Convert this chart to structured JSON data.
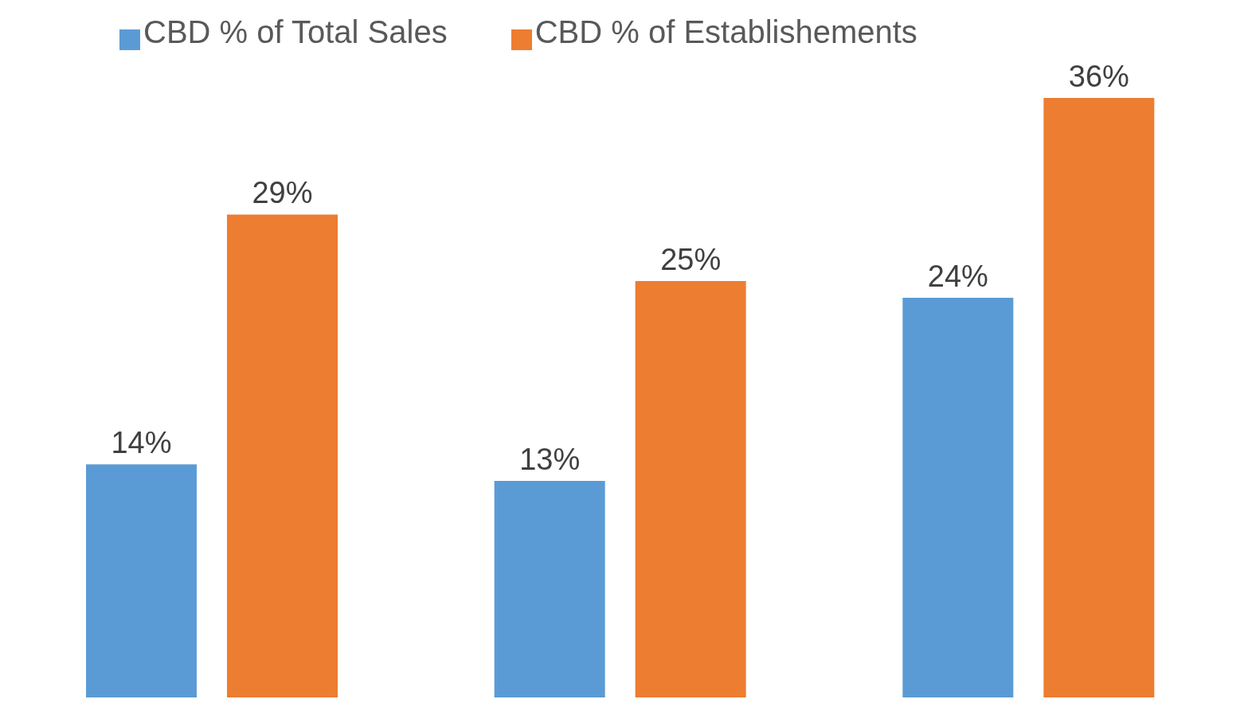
{
  "chart_data": {
    "type": "bar",
    "categories": [
      null,
      null,
      null
    ],
    "series": [
      {
        "name": "CBD % of Total Sales",
        "color": "#5b9bd5",
        "values": [
          14,
          13,
          24
        ],
        "value_labels": [
          "14%",
          "13%",
          "24%"
        ]
      },
      {
        "name": "CBD % of Establishements",
        "color": "#ed7d31",
        "values": [
          29,
          25,
          36
        ],
        "value_labels": [
          "29%",
          "25%",
          "36%"
        ]
      }
    ],
    "legend": "top",
    "grid": false
  }
}
